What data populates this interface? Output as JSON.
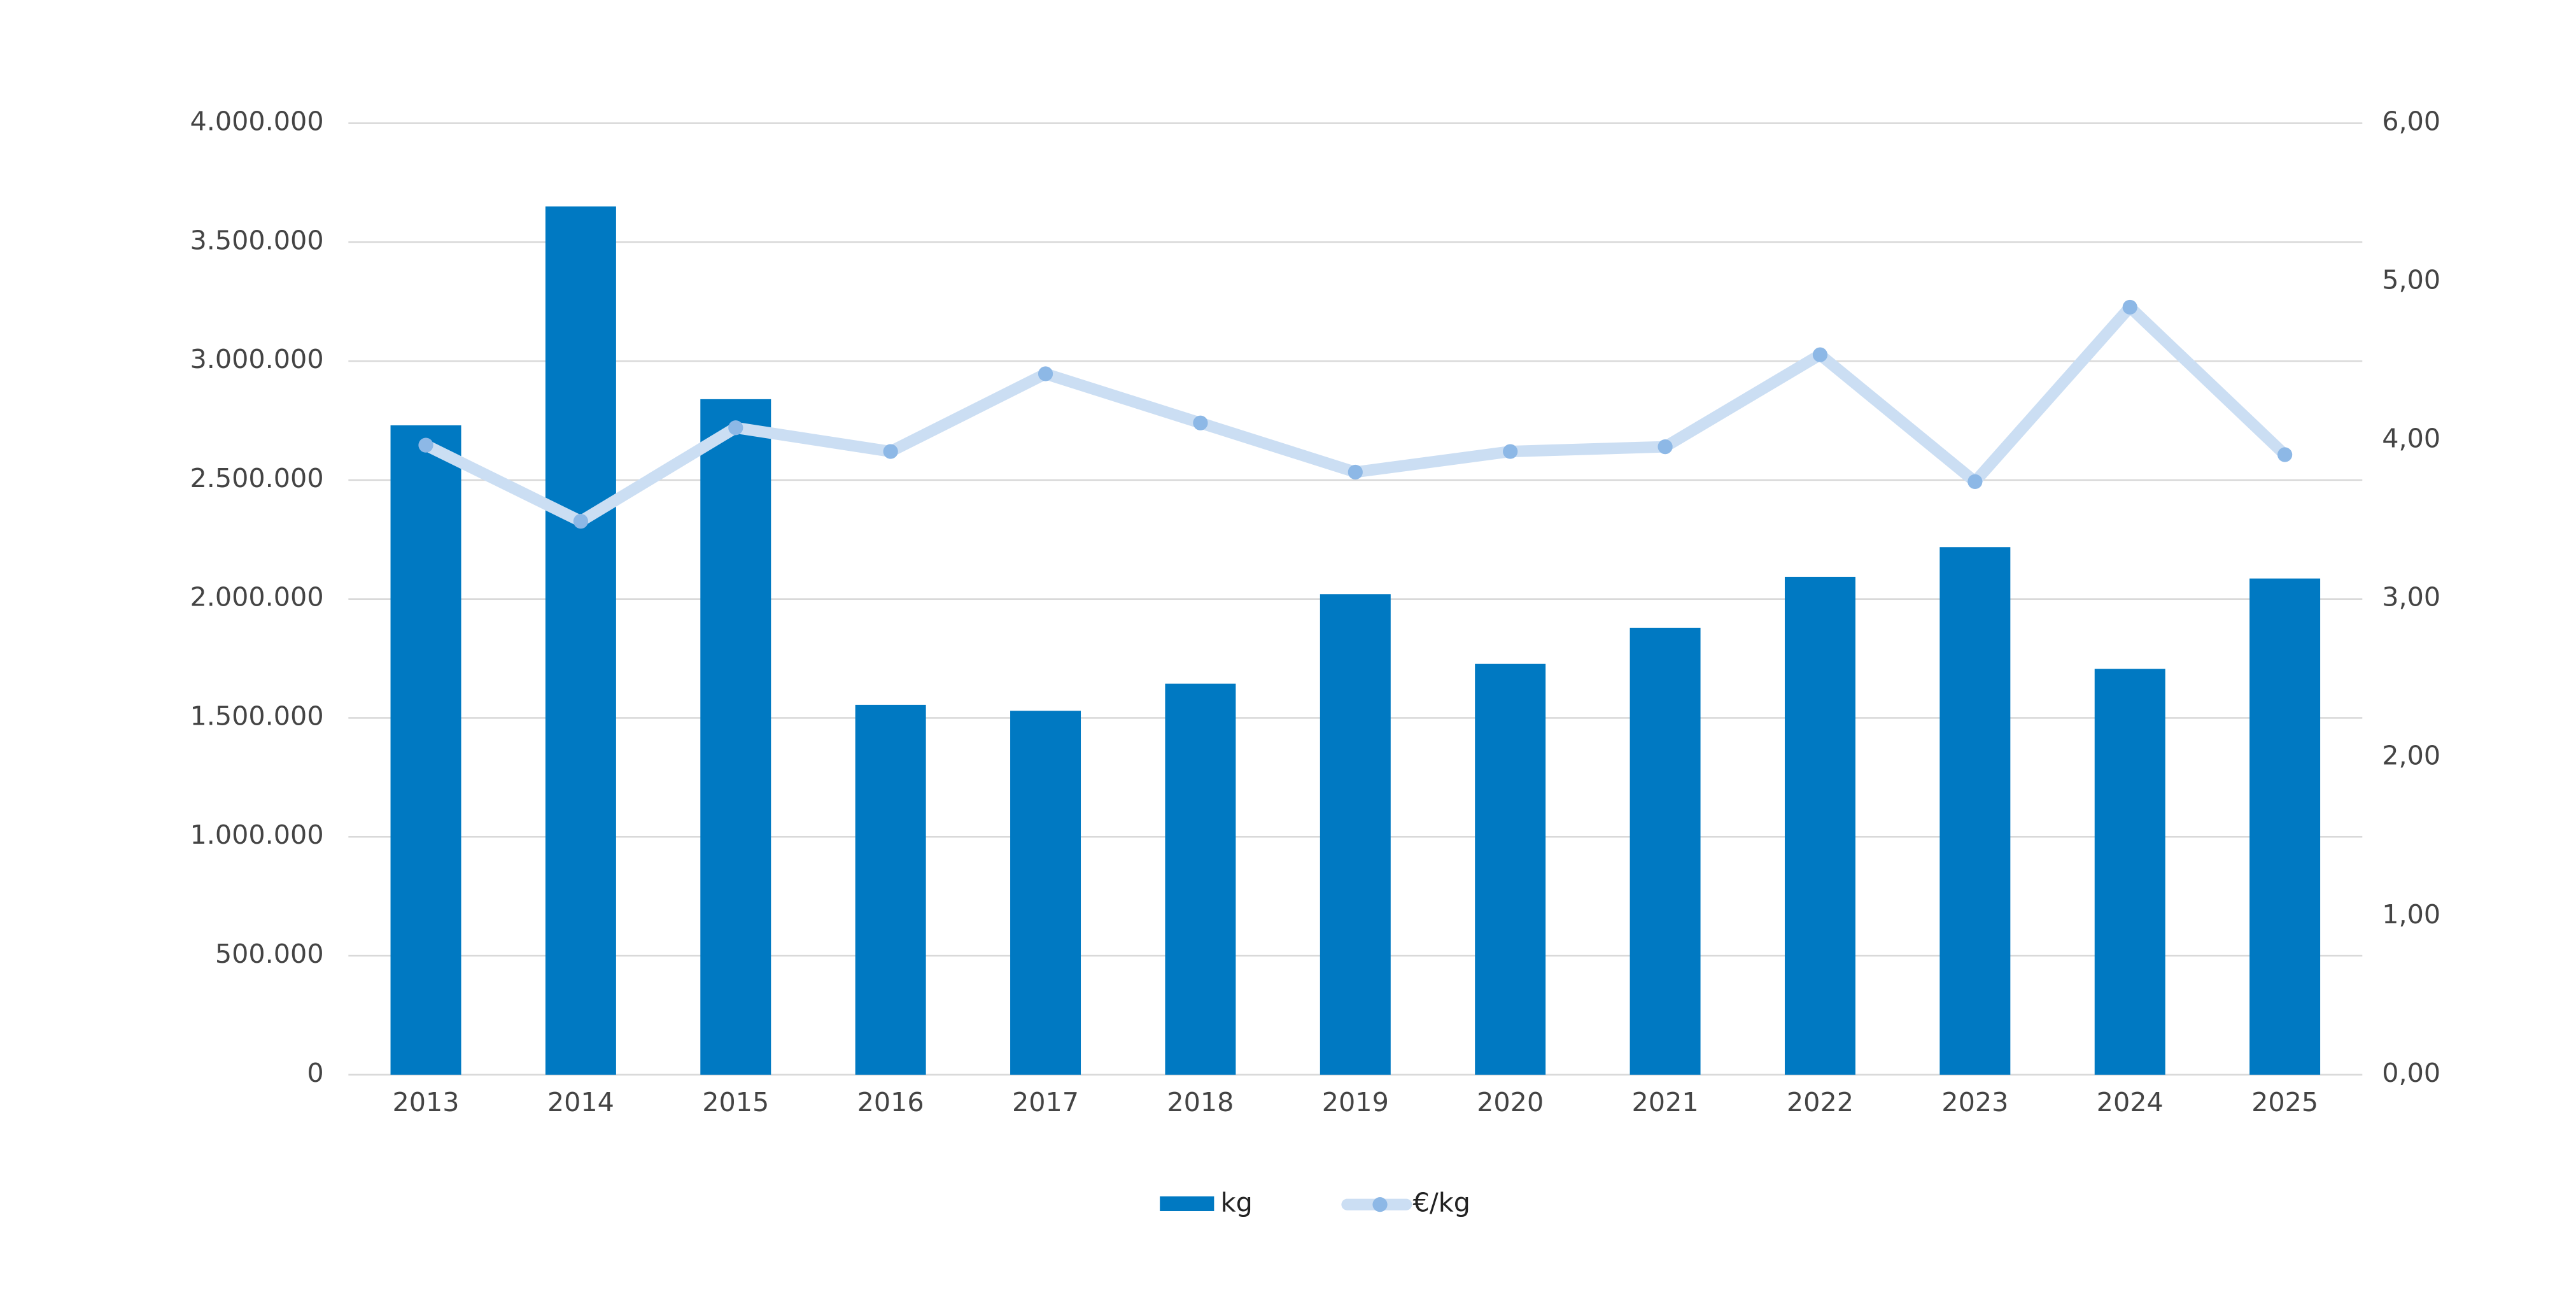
{
  "chart_data": {
    "type": "bar_line",
    "categories": [
      "2013",
      "2014",
      "2015",
      "2016",
      "2017",
      "2018",
      "2019",
      "2020",
      "2021",
      "2022",
      "2023",
      "2024",
      "2025"
    ],
    "series": [
      {
        "name": "kg",
        "type": "bar",
        "color": "#0079c2",
        "values": [
          2730000,
          3650000,
          2840000,
          1555000,
          1530000,
          1644000,
          2020000,
          1727000,
          1879000,
          2093000,
          2218000,
          1706000,
          2086000
        ]
      },
      {
        "name": "€/kg",
        "type": "line",
        "axis": "y2",
        "color": "#cbdef3",
        "marker_color": "#8db8e6",
        "values": [
          3.97,
          3.49,
          4.08,
          3.93,
          4.42,
          4.11,
          3.8,
          3.93,
          3.96,
          4.54,
          3.74,
          4.84,
          3.91
        ]
      }
    ],
    "ylim": [
      0,
      4000000
    ],
    "yticks": [
      {
        "value": 0,
        "label": "0"
      },
      {
        "value": 500000,
        "label": "500.000"
      },
      {
        "value": 1000000,
        "label": "1.000.000"
      },
      {
        "value": 1500000,
        "label": "1.500.000"
      },
      {
        "value": 2000000,
        "label": "2.000.000"
      },
      {
        "value": 2500000,
        "label": "2.500.000"
      },
      {
        "value": 3000000,
        "label": "3.000.000"
      },
      {
        "value": 3500000,
        "label": "3.500.000"
      },
      {
        "value": 4000000,
        "label": "4.000.000"
      }
    ],
    "y2lim": [
      0,
      6
    ],
    "y2ticks": [
      {
        "value": 0,
        "label": "0,00"
      },
      {
        "value": 1,
        "label": "1,00"
      },
      {
        "value": 2,
        "label": "2,00"
      },
      {
        "value": 3,
        "label": "3,00"
      },
      {
        "value": 4,
        "label": "4,00"
      },
      {
        "value": 5,
        "label": "5,00"
      },
      {
        "value": 6,
        "label": "6,00"
      }
    ],
    "grid": true,
    "legend": "bottom"
  }
}
